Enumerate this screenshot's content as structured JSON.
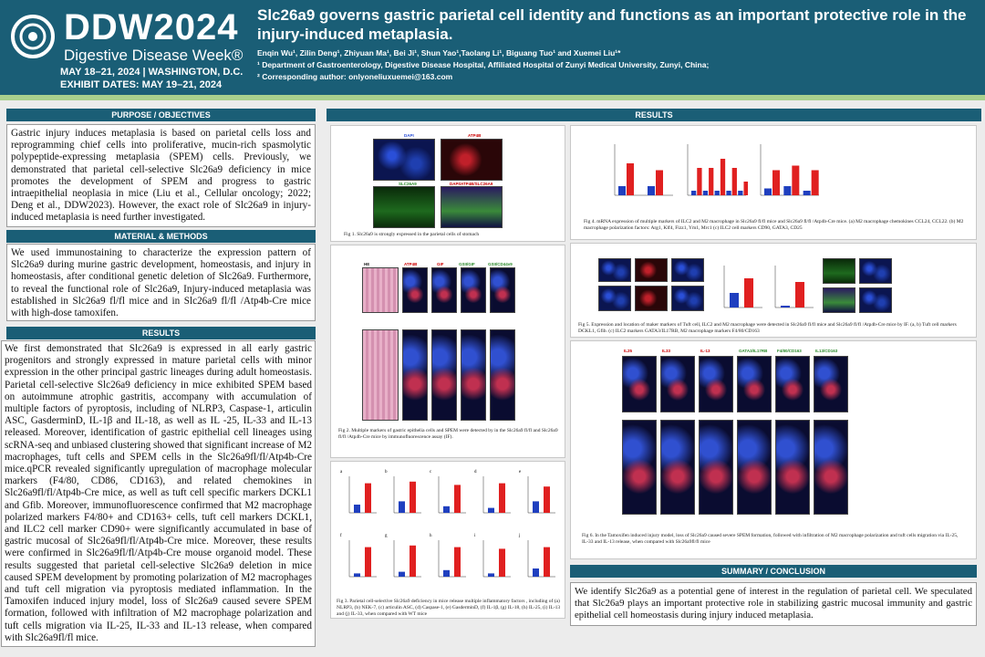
{
  "header": {
    "logo_ddw": "DDW2024",
    "logo_sub": "Digestive Disease Week®",
    "logo_dates_line1": "MAY 18–21, 2024 | WASHINGTON, D.C.",
    "logo_dates_line2": "EXHIBIT DATES: MAY 19–21, 2024",
    "title": "Slc26a9 governs gastric parietal cell identity and functions as an important protective role in the injury-induced metaplasia.",
    "authors": "Enqin Wu¹, Zilin Deng¹, Zhiyuan Ma¹, Bei Ji¹, Shun Yao¹,Taolang Li¹, Biguang Tuo¹ and Xuemei Liu¹*",
    "affiliation": "¹ Department of Gastroenterology, Digestive Disease Hospital, Affiliated Hospital of Zunyi Medical University, Zunyi, China;",
    "corresponding": "² Corresponding author: onlyoneliuxuemei@163.com"
  },
  "sections": {
    "purpose_title": "PURPOSE / OBJECTIVES",
    "purpose_text": "Gastric injury induces metaplasia is based on parietal cells loss and reprogramming chief cells into proliferative, mucin-rich spasmolytic polypeptide-expressing metaplasia (SPEM) cells. Previously, we demonstrated that parietal cell-selective Slc26a9 deficiency in mice promotes the development of SPEM and progress to gastric intraepithelial neoplasia in mice (Liu et al., Cellular oncology; 2022; Deng et al., DDW2023). However, the exact role of Slc26a9 in injury-induced metaplasia is need further investigated.",
    "methods_title": "MATERIAL & METHODS",
    "methods_text": "We used immunostaining to characterize the expression pattern of Slc26a9 during murine gastric development, homeostasis, and injury in homeostasis, after conditional genetic deletion of Slc26a9. Furthermore, to reveal the functional role of Slc26a9, Injury-induced metaplasia was established in Slc26a9 fl/fl mice and in Slc26a9 fl/fl /Atp4b-Cre mice with high-dose tamoxifen.",
    "results_left_title": "RESULTS",
    "results_left_text": "We first demonstrated that Slc26a9 is expressed in all early gastric progenitors and strongly expressed in mature parietal cells with minor expression in the other principal gastric lineages during adult homeostasis. Parietal cell-selective Slc26a9 deficiency in mice exhibited SPEM based on autoimmune atrophic gastritis, accompany with accumulation of multiple factors of pyroptosis, including of NLRP3, Caspase-1, articulin ASC, GasderminD, IL-1β and IL-18, as well as IL -25, IL-33 and IL-13 released. Moreover, identification of gastric epithelial cell lineages using scRNA-seq and unbiased clustering showed that significant increase of M2 macrophages, tuft cells and SPEM cells in the Slc26a9fl/fl/Atp4b-Cre mice.qPCR revealed significantly upregulation of macrophage molecular markers (F4/80, CD86, CD163), and related chemokines in Slc26a9fl/fl/Atp4b-Cre mice, as well as tuft cell specific markers DCKL1 and Gfib. Moreover, immunofluorescence confirmed that M2 macrophage polarized markers F4/80+ and CD163+ cells, tuft cell markers DCKL1, and ILC2 cell marker CD90+ were significantly accumulated in base of gastric mucosal of Slc26a9fl/fl/Atp4b-Cre mice. Moreover, these results were confirmed in Slc26a9fl/fl/Atp4b-Cre mouse organoid model. These results suggested that parietal cell-selective Slc26a9 deletion in mice caused SPEM development by promoting polarization of M2 macrophages and tuft cell migration via pyroptosis mediated inflammation. In the Tamoxifen induced injury model, loss of Slc26a9 caused severe SPEM formation, followed with infiltration of M2 macrophage polarization and tuft cells migration via IL-25, IL-33 and IL-13 release, when compared with Slc26a9fl/fl mice.",
    "results_right_title": "RESULTS",
    "summary_title": "SUMMARY / CONCLUSION",
    "summary_text": "We identify Slc26a9 as a potential gene of interest in the regulation of parietal cell. We speculated that Slc26a9 plays an important protective role in stabilizing gastric mucosal immunity and gastric epithelial cell homeostasis during injury induced metaplasia."
  },
  "figures": {
    "fig1_caption": "Fig 1. Slc26a9 is strongly expressed in the parietal cells of stomach",
    "fig1_labels": [
      "DAPI",
      "ATP4B",
      "SLC26A9",
      "DAPI/ATP4B/SLC26A9"
    ],
    "fig2_caption": "Fig 2. Multiple markers of gastric epithelia cells and SPEM were detected by in the Slc26a9 fl/fl and Slc26a9 fl/fl /Atp4b-Cre mice by immunofluorescence assay (IF).",
    "fig2_labels": [
      "HE",
      "ATP4B",
      "GIF",
      "GSII/GIF",
      "GSII/CD44v9"
    ],
    "fig3_caption": "Fig 3. Parietal cell-selective Slc26a9 deficiency in mice release multiple inflammatory factors , including of (a) NLRP3, (b) NEK-7, (c) articulin ASC, (d) Caspase-1, (e) GasderminD, (f) IL-1β, (g) IL-18, (h) IL-25, (i) IL-13 and (j) IL-33, when compared with WT mice",
    "fig3_letters": [
      "a",
      "b",
      "c",
      "d",
      "e",
      "f",
      "g",
      "h",
      "i",
      "j"
    ],
    "fig4_caption": "Fig 4. mRNA expression of multiple markers of ILC2 and M2 macrophage in Slc26a9 fl/fl mice and Slc26a9 fl/fl /Atp4b-Cre mice. (a) M2 macrophage chemokines CCL24, CCL22. (b) M2 macrophage polarization factors: Arg1, Klf4, Fizz1, Ym1, Mrc1 (c) ILC2 cell markers CD90, GATA3, CD25",
    "fig5_caption": "Fig 5. Expression and location of maker markers of Tuft cell, ILC2 and M2 macrophage were detected in Slc26a9 fl/fl mice and Slc26a9 fl/fl /Atp4b-Cre mice by IF. (a, b) Tuft cell markers DCKL1, Gfib. (c) ILC2 markers GATA3/IL17RB, M2 macrophage markers F4/80/CD163",
    "fig6_caption": "Fig 6. In the Tamoxifen induced injury model, loss of Slc26a9 caused severe SPEM formation, followed with infiltration of M2 macrophage polarization and tuft cells migration via IL-25, IL-33 and IL-13 release, when compared with Slc26a9fl/fl mice",
    "fig6_labels": [
      "IL25",
      "IL33",
      "IL-13",
      "GATA3/IL17RB",
      "F4/80/CD163",
      "IL13/CD163"
    ]
  },
  "colors": {
    "header_bg": "#1a5e76",
    "accent_green": "#a8d08d",
    "bar_red": "#e02020",
    "bar_blue": "#1f3fbf"
  }
}
